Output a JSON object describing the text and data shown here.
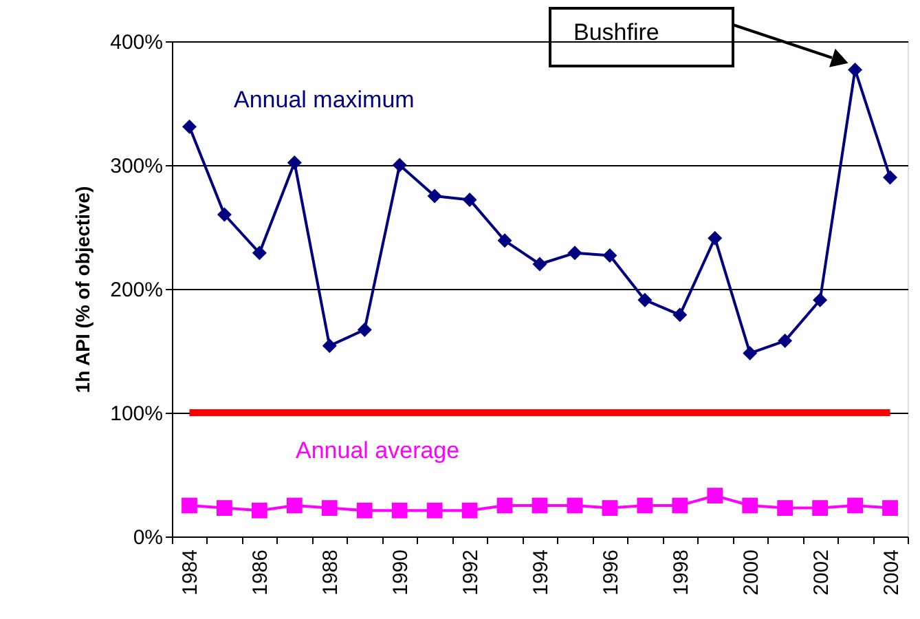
{
  "chart_data": {
    "type": "line",
    "ylabel": "1h API (% of objective)",
    "categories": [
      "1984",
      null,
      "1986",
      null,
      "1988",
      null,
      "1990",
      null,
      "1992",
      null,
      "1994",
      null,
      "1996",
      null,
      "1998",
      null,
      "2000",
      null,
      "2002",
      null,
      "2004"
    ],
    "series": [
      {
        "name": "Annual maximum",
        "color": "#000080",
        "marker": "diamond",
        "values": [
          331,
          260,
          229,
          302,
          154,
          167,
          300,
          275,
          272,
          239,
          220,
          229,
          227,
          191,
          179,
          241,
          148,
          158,
          191,
          377,
          290
        ]
      },
      {
        "name": "Annual average",
        "color": "#ff00ff",
        "marker": "square",
        "values": [
          25,
          23,
          21,
          25,
          23,
          21,
          21,
          21,
          21,
          25,
          25,
          25,
          23,
          25,
          25,
          33,
          25,
          23,
          23,
          25,
          23
        ]
      }
    ],
    "ylim": [
      0,
      400
    ],
    "yticks": [
      {
        "value": 0,
        "label": "0%"
      },
      {
        "value": 100,
        "label": "100%"
      },
      {
        "value": 200,
        "label": "200%"
      },
      {
        "value": 300,
        "label": "300%"
      },
      {
        "value": 400,
        "label": "400%"
      }
    ],
    "ref_lines": [
      {
        "axis": "y",
        "value": 100,
        "color": "#ff0000"
      }
    ],
    "annotations": [
      "Bushfire"
    ],
    "grid": "y",
    "legend": false,
    "line_style": "solid"
  }
}
